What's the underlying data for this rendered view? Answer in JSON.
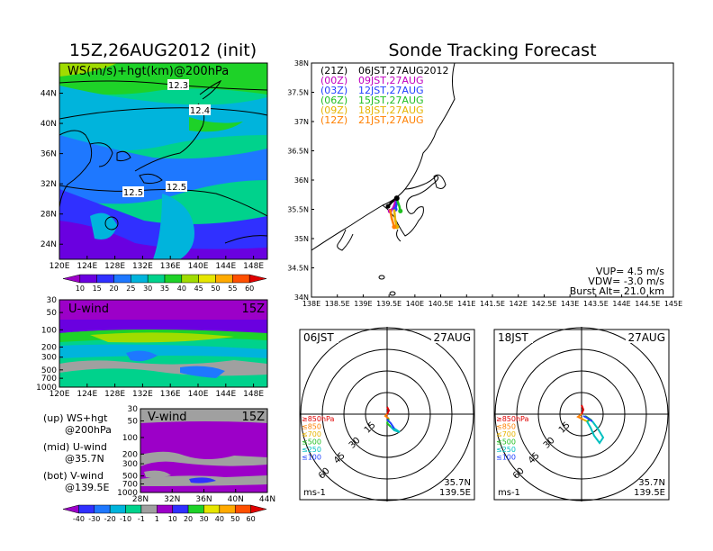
{
  "map": {
    "title": "15Z,26AUG2012 (init)",
    "label": "WS(m/s)+hgt(km)@200hPa",
    "lat_ticks": [
      "44N",
      "40N",
      "36N",
      "32N",
      "28N",
      "24N"
    ],
    "lon_ticks": [
      "120E",
      "124E",
      "128E",
      "132E",
      "136E",
      "140E",
      "144E",
      "148E"
    ],
    "contours": [
      "12.3",
      "12.4",
      "12.5",
      "12.5"
    ],
    "colorbar": {
      "levels": [
        "10",
        "15",
        "20",
        "25",
        "30",
        "35",
        "40",
        "45",
        "50",
        "55",
        "60"
      ],
      "colors": [
        "#9c00c8",
        "#6a00e0",
        "#3030ff",
        "#1e78ff",
        "#00b4dc",
        "#00d28c",
        "#1ed228",
        "#a0dc00",
        "#e6e600",
        "#ffaa00",
        "#ff5000",
        "#e00000"
      ]
    }
  },
  "uwind": {
    "label": "U-wind",
    "time": "15Z",
    "p_ticks": [
      "30",
      "50",
      "100",
      "200",
      "300",
      "500",
      "700",
      "1000"
    ],
    "lon_ticks": [
      "120E",
      "124E",
      "128E",
      "132E",
      "136E",
      "140E",
      "144E",
      "148E"
    ]
  },
  "vwind": {
    "label": "V-wind",
    "time": "15Z",
    "p_ticks": [
      "30",
      "50",
      "100",
      "200",
      "300",
      "500",
      "700",
      "1000"
    ],
    "lat_ticks": [
      "28N",
      "32N",
      "36N",
      "40N",
      "44N"
    ]
  },
  "legend_text": [
    {
      "a": "(up) WS+hgt",
      "b": "@200hPa"
    },
    {
      "a": "(mid) U-wind",
      "b": "@35.7N"
    },
    {
      "a": "(bot) V-wind",
      "b": "@139.5E"
    }
  ],
  "bottom_colorbar": {
    "levels": [
      "-40",
      "-30",
      "-20",
      "-10",
      "-1",
      "1",
      "10",
      "20",
      "30",
      "40",
      "50",
      "60"
    ],
    "colors": [
      "#9c00c8",
      "#3030ff",
      "#1e78ff",
      "#00b4dc",
      "#00d28c",
      "#a0a0a0",
      "#9c00c8",
      "#3030ff",
      "#1ed228",
      "#e6e600",
      "#ffaa00",
      "#ff5000",
      "#e00000"
    ]
  },
  "track": {
    "title": "Sonde Tracking Forecast",
    "lat_ticks": [
      "38N",
      "37.5N",
      "37N",
      "36.5N",
      "36N",
      "35.5N",
      "35N",
      "34.5N",
      "34N"
    ],
    "lon_ticks": [
      "138E",
      "138.5E",
      "139E",
      "139.5E",
      "140E",
      "140.5E",
      "141E",
      "141.5E",
      "142E",
      "142.5E",
      "143E",
      "143.5E",
      "144E",
      "144.5E",
      "145E"
    ],
    "launches": [
      {
        "utc": "(21Z)",
        "jst": "06JST,27AUG2012",
        "color": "#000000"
      },
      {
        "utc": "(00Z)",
        "jst": "09JST,27AUG",
        "color": "#c000c0"
      },
      {
        "utc": "(03Z)",
        "jst": "12JST,27AUG",
        "color": "#2040ff"
      },
      {
        "utc": "(06Z)",
        "jst": "15JST,27AUG",
        "color": "#20c020"
      },
      {
        "utc": "(09Z)",
        "jst": "18JST,27AUG",
        "color": "#e6b400"
      },
      {
        "utc": "(12Z)",
        "jst": "21JST,27AUG",
        "color": "#ff8000"
      }
    ],
    "vup": "VUP= 4.5 m/s",
    "vdw": "VDW= -3.0 m/s",
    "burst": "Burst Alt= 21.0 km"
  },
  "hodographs": [
    {
      "time": "06JST",
      "date": "27AUG",
      "lat": "35.7N",
      "lon": "139.5E",
      "units": "ms-1"
    },
    {
      "time": "18JST",
      "date": "27AUG",
      "lat": "35.7N",
      "lon": "139.5E",
      "units": "ms-1"
    }
  ],
  "hodo_rings": [
    "15",
    "30",
    "45",
    "60"
  ],
  "hodo_levels": [
    {
      "label": "≥850hPa",
      "color": "#e00000"
    },
    {
      "label": "≤850",
      "color": "#ff8000"
    },
    {
      "label": "≤700",
      "color": "#e6b400"
    },
    {
      "label": "≤500",
      "color": "#20c020"
    },
    {
      "label": "≤250",
      "color": "#00c0c0"
    },
    {
      "label": "≤100",
      "color": "#2040ff"
    }
  ],
  "chart_data": [
    {
      "type": "heatmap",
      "title": "15Z,26AUG2012 (init)",
      "variable": "WS(m/s)+hgt(km)@200hPa",
      "xlim": [
        120,
        150
      ],
      "ylim": [
        22,
        48
      ],
      "contour_values_km": [
        12.3,
        12.4,
        12.5,
        12.5
      ],
      "colorbar_levels": [
        10,
        15,
        20,
        25,
        30,
        35,
        40,
        45,
        50,
        55,
        60
      ]
    },
    {
      "type": "heatmap",
      "variable": "U-wind",
      "cross_section_lat": "35.7N",
      "xlim": [
        120,
        150
      ],
      "ylim_hPa": [
        1000,
        30
      ]
    },
    {
      "type": "heatmap",
      "variable": "V-wind",
      "cross_section_lon": "139.5E",
      "xlim": [
        28,
        44
      ],
      "ylim_hPa": [
        1000,
        30
      ],
      "colorbar_levels": [
        -40,
        -30,
        -20,
        -10,
        -1,
        1,
        10,
        20,
        30,
        40,
        50,
        60
      ]
    },
    {
      "type": "line",
      "title": "Sonde Tracking Forecast",
      "xlim": [
        138,
        145
      ],
      "ylim": [
        34,
        38
      ],
      "series": [
        {
          "name": "(21Z) 06JST,27AUG2012",
          "x": [
            139.48,
            139.55,
            139.65
          ],
          "y": [
            35.55,
            35.62,
            35.69
          ]
        },
        {
          "name": "(00Z) 09JST,27AUG",
          "x": [
            139.52,
            139.58,
            139.65
          ],
          "y": [
            35.47,
            35.52,
            35.69
          ]
        },
        {
          "name": "(03Z) 12JST,27AUG",
          "x": [
            139.62,
            139.65,
            139.65
          ],
          "y": [
            35.5,
            35.6,
            35.69
          ]
        },
        {
          "name": "(06Z) 15JST,27AUG",
          "x": [
            139.72,
            139.7,
            139.66
          ],
          "y": [
            35.47,
            35.55,
            35.65
          ]
        },
        {
          "name": "(09Z) 18JST,27AUG",
          "x": [
            139.65,
            139.62,
            139.6
          ],
          "y": [
            35.2,
            35.32,
            35.5
          ]
        },
        {
          "name": "(12Z) 21JST,27AUG",
          "x": [
            139.6,
            139.55,
            139.52
          ],
          "y": [
            35.2,
            35.35,
            35.5
          ]
        }
      ]
    }
  ]
}
